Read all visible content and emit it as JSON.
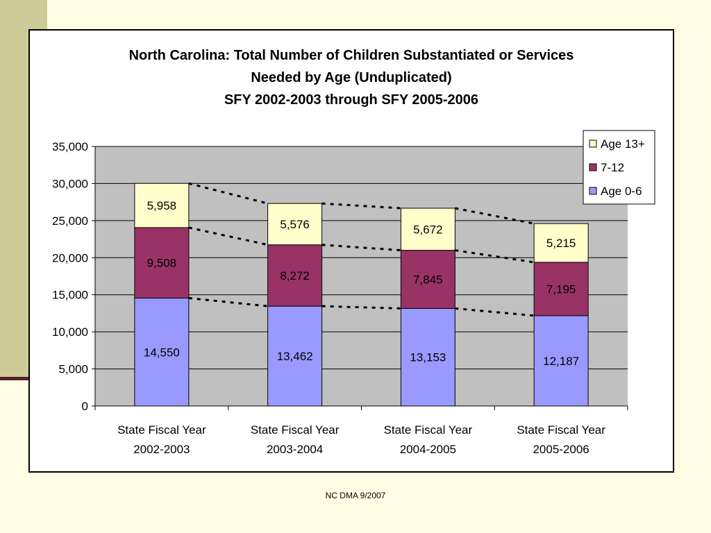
{
  "footer": {
    "note": "NC DMA 9/2007"
  },
  "colors": {
    "plot_background": "#C0C0C0",
    "age_13_plus": "#FFFFCC",
    "age_7_12": "#993366",
    "age_0_6": "#9999FF",
    "slide_band": "#CDCC99",
    "slide_rule": "#5A1E2E",
    "slide_background": "#FFFDE4"
  },
  "chart_data": {
    "type": "bar",
    "stacked": true,
    "title_lines": [
      "North Carolina: Total Number of Children Substantiated or Services",
      "Needed by Age (Unduplicated)",
      "SFY 2002-2003 through SFY 2005-2006"
    ],
    "categories": [
      [
        "State Fiscal Year",
        "2002-2003"
      ],
      [
        "State Fiscal Year",
        "2003-2004"
      ],
      [
        "State Fiscal Year",
        "2004-2005"
      ],
      [
        "State Fiscal Year",
        "2005-2006"
      ]
    ],
    "series": [
      {
        "name": "Age 0-6",
        "color": "#9999FF",
        "values": [
          14550,
          13462,
          13153,
          12187
        ],
        "labels": [
          "14,550",
          "13,462",
          "13,153",
          "12,187"
        ]
      },
      {
        "name": "7-12",
        "color": "#993366",
        "values": [
          9508,
          8272,
          7845,
          7195
        ],
        "labels": [
          "9,508",
          "8,272",
          "7,845",
          "7,195"
        ]
      },
      {
        "name": "Age 13+",
        "color": "#FFFFCC",
        "values": [
          5958,
          5576,
          5672,
          5215
        ],
        "labels": [
          "5,958",
          "5,576",
          "5,672",
          "5,215"
        ]
      }
    ],
    "legend_order": [
      "Age 13+",
      "7-12",
      "Age 0-6"
    ],
    "legend_position": "top-right",
    "ylim": [
      0,
      35000
    ],
    "yticks": [
      0,
      5000,
      10000,
      15000,
      20000,
      25000,
      30000,
      35000
    ],
    "ytick_labels": [
      "0",
      "5,000",
      "10,000",
      "15,000",
      "20,000",
      "25,000",
      "30,000",
      "35,000"
    ],
    "grid": true,
    "series_lines": "dotted"
  }
}
